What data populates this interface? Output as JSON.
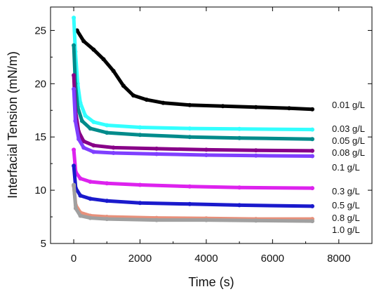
{
  "chart_data": {
    "type": "scatter",
    "title": "",
    "xlabel": "Time (s)",
    "ylabel": "Interfacial Tension (mN/m)",
    "xlim": [
      -700,
      9000
    ],
    "ylim": [
      5,
      27.2
    ],
    "xticks": [
      0,
      2000,
      4000,
      6000,
      8000
    ],
    "yticks": [
      5,
      10,
      15,
      20,
      25
    ],
    "xtick_labels": [
      "0",
      "2000",
      "4000",
      "6000",
      "8000"
    ],
    "ytick_labels": [
      "5",
      "10",
      "15",
      "20",
      "25"
    ],
    "grid": false,
    "legend": "labels at right end of each curve",
    "series": [
      {
        "name": "0.01 g/L",
        "color": "#000000",
        "points": [
          [
            100,
            25.0
          ],
          [
            300,
            24.0
          ],
          [
            600,
            23.2
          ],
          [
            900,
            22.3
          ],
          [
            1200,
            21.2
          ],
          [
            1500,
            19.8
          ],
          [
            1800,
            18.9
          ],
          [
            2200,
            18.5
          ],
          [
            2700,
            18.2
          ],
          [
            3500,
            18.0
          ],
          [
            4500,
            17.9
          ],
          [
            5500,
            17.8
          ],
          [
            6500,
            17.7
          ],
          [
            7200,
            17.6
          ]
        ]
      },
      {
        "name": "0.03 g/L",
        "color": "#33ffff",
        "points": [
          [
            0,
            26.2
          ],
          [
            50,
            23.0
          ],
          [
            120,
            20.0
          ],
          [
            200,
            18.2
          ],
          [
            350,
            17.0
          ],
          [
            600,
            16.4
          ],
          [
            1000,
            16.1
          ],
          [
            2000,
            15.9
          ],
          [
            3500,
            15.8
          ],
          [
            5000,
            15.75
          ],
          [
            7200,
            15.7
          ]
        ]
      },
      {
        "name": "0.05 g/L",
        "color": "#008b8b",
        "points": [
          [
            0,
            23.6
          ],
          [
            50,
            20.0
          ],
          [
            120,
            17.8
          ],
          [
            250,
            16.5
          ],
          [
            500,
            15.8
          ],
          [
            1000,
            15.4
          ],
          [
            2000,
            15.2
          ],
          [
            3500,
            15.0
          ],
          [
            5000,
            14.9
          ],
          [
            7200,
            14.8
          ]
        ]
      },
      {
        "name": "0.08 g/L",
        "color": "#880088",
        "points": [
          [
            0,
            20.8
          ],
          [
            50,
            17.5
          ],
          [
            150,
            15.5
          ],
          [
            300,
            14.6
          ],
          [
            600,
            14.2
          ],
          [
            1200,
            14.0
          ],
          [
            2500,
            13.9
          ],
          [
            4000,
            13.8
          ],
          [
            5500,
            13.75
          ],
          [
            7200,
            13.7
          ]
        ]
      },
      {
        "name": "0.1 g/L",
        "color": "#7f3fff",
        "points": [
          [
            0,
            19.5
          ],
          [
            50,
            16.5
          ],
          [
            150,
            14.8
          ],
          [
            300,
            14.0
          ],
          [
            600,
            13.6
          ],
          [
            1200,
            13.5
          ],
          [
            2500,
            13.4
          ],
          [
            4000,
            13.3
          ],
          [
            5500,
            13.25
          ],
          [
            7200,
            13.2
          ]
        ]
      },
      {
        "name": "0.3 g/L",
        "color": "#dd22ee",
        "points": [
          [
            0,
            13.8
          ],
          [
            60,
            11.7
          ],
          [
            200,
            11.1
          ],
          [
            500,
            10.8
          ],
          [
            1000,
            10.65
          ],
          [
            2000,
            10.5
          ],
          [
            3500,
            10.35
          ],
          [
            5000,
            10.25
          ],
          [
            7200,
            10.2
          ]
        ]
      },
      {
        "name": "0.5 g/L",
        "color": "#1a1acc",
        "points": [
          [
            0,
            12.3
          ],
          [
            60,
            10.2
          ],
          [
            200,
            9.5
          ],
          [
            500,
            9.2
          ],
          [
            1000,
            9.0
          ],
          [
            2000,
            8.8
          ],
          [
            3500,
            8.7
          ],
          [
            5000,
            8.6
          ],
          [
            7200,
            8.5
          ]
        ]
      },
      {
        "name": "0.8 g/L",
        "color": "#e8907a",
        "points": [
          [
            0,
            10.4
          ],
          [
            60,
            8.6
          ],
          [
            200,
            7.9
          ],
          [
            500,
            7.6
          ],
          [
            1000,
            7.5
          ],
          [
            2500,
            7.4
          ],
          [
            4000,
            7.35
          ],
          [
            5500,
            7.3
          ],
          [
            7200,
            7.3
          ]
        ]
      },
      {
        "name": "1.0 g/L",
        "color": "#a0a0a0",
        "points": [
          [
            0,
            10.5
          ],
          [
            60,
            8.3
          ],
          [
            200,
            7.6
          ],
          [
            500,
            7.4
          ],
          [
            1000,
            7.3
          ],
          [
            2500,
            7.2
          ],
          [
            4000,
            7.2
          ],
          [
            5500,
            7.15
          ],
          [
            7200,
            7.1
          ]
        ]
      }
    ]
  }
}
